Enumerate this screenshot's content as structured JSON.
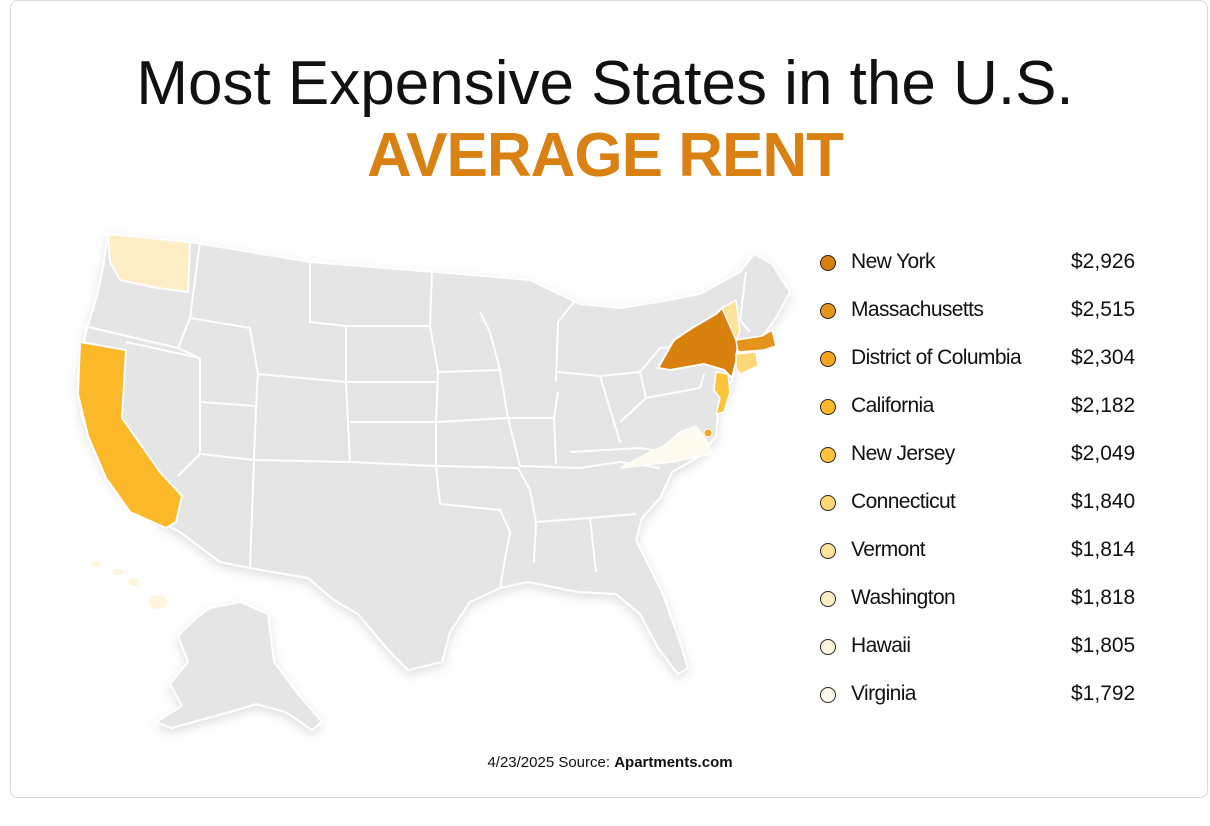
{
  "header": {
    "title": "Most Expensive States in the U.S.",
    "subtitle": "AVERAGE RENT"
  },
  "legend": {
    "items": [
      {
        "state": "New York",
        "rent": "$2,926",
        "color": "#d8810f"
      },
      {
        "state": "Massachusetts",
        "rent": "$2,515",
        "color": "#e5941b"
      },
      {
        "state": "District of Columbia",
        "rent": "$2,304",
        "color": "#f3a51f"
      },
      {
        "state": "California",
        "rent": "$2,182",
        "color": "#fbb829"
      },
      {
        "state": "New Jersey",
        "rent": "$2,049",
        "color": "#fcc43b"
      },
      {
        "state": "Connecticut",
        "rent": "$1,840",
        "color": "#fdd874"
      },
      {
        "state": "Vermont",
        "rent": "$1,814",
        "color": "#fde29a"
      },
      {
        "state": "Washington",
        "rent": "$1,818",
        "color": "#fdeec6"
      },
      {
        "state": "Hawaii",
        "rent": "$1,805",
        "color": "#fef5de"
      },
      {
        "state": "Virginia",
        "rent": "$1,792",
        "color": "#fefaee"
      }
    ]
  },
  "map_colors": {
    "base": "#e5e5e5",
    "border": "#ffffff"
  },
  "footer": {
    "date_source": "4/23/2025 Source: ",
    "source_name": "Apartments.com"
  }
}
